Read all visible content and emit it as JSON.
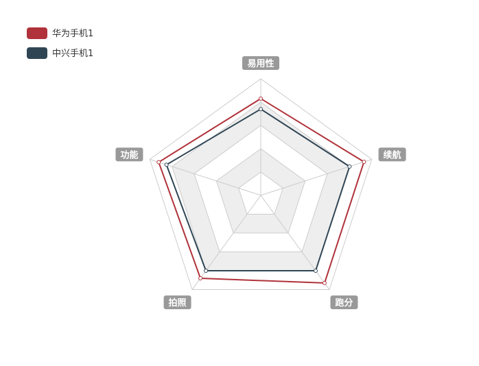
{
  "chart_data": {
    "type": "radar",
    "indicators": [
      "易用性",
      "续航",
      "跑分",
      "拍照",
      "功能"
    ],
    "max": 100,
    "split_number": 5,
    "series": [
      {
        "name": "华为手机1",
        "values": [
          83,
          93,
          93,
          88,
          92
        ],
        "color": "#b0323a"
      },
      {
        "name": "中兴手机1",
        "values": [
          74,
          80,
          80,
          80,
          85
        ],
        "color": "#2f4554"
      }
    ],
    "legend_position": "top-left",
    "split_area_colors": [
      "#ffffff",
      "#eeeeee"
    ],
    "split_line_color": "#cccccc",
    "axis_label_bg": "#999999"
  }
}
